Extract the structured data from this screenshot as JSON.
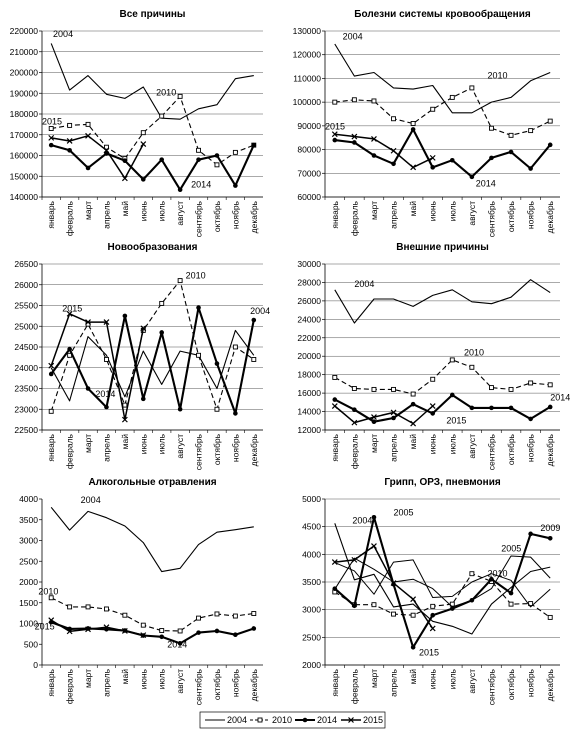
{
  "legend": {
    "items": [
      {
        "label": "2004",
        "style": "thin"
      },
      {
        "label": "2010",
        "style": "dash-square"
      },
      {
        "label": "2014",
        "style": "thick-dot"
      },
      {
        "label": "2015",
        "style": "cross"
      }
    ]
  },
  "months": [
    "январь",
    "февраль",
    "март",
    "апрель",
    "май",
    "июнь",
    "июль",
    "август",
    "сентябрь",
    "октябрь",
    "ноябрь",
    "декабрь"
  ],
  "chart_data": [
    {
      "type": "line",
      "title": "Все причины",
      "ylim": [
        140000,
        220000
      ],
      "yticks": [
        140000,
        150000,
        160000,
        170000,
        180000,
        190000,
        200000,
        210000,
        220000
      ],
      "grid": true,
      "series": [
        {
          "name": "2004",
          "values": [
            214000,
            191500,
            198500,
            189500,
            187500,
            193000,
            178000,
            177500,
            182500,
            184500,
            197000,
            198500
          ]
        },
        {
          "name": "2010",
          "values": [
            173000,
            174500,
            175000,
            164000,
            158500,
            171000,
            179000,
            188500,
            162500,
            155500,
            161500,
            165000
          ]
        },
        {
          "name": "2014",
          "values": [
            165000,
            162500,
            154000,
            161000,
            157500,
            148500,
            158000,
            143500,
            158000,
            160000,
            145500,
            165000
          ]
        },
        {
          "name": "2015",
          "values": [
            168500,
            167000,
            169500,
            162500,
            149000,
            165500,
            null,
            null,
            null,
            null,
            null,
            null
          ]
        }
      ],
      "annotations": [
        {
          "text": "2004"
        },
        {
          "text": "2010"
        },
        {
          "text": "2015"
        },
        {
          "text": "2014"
        }
      ]
    },
    {
      "type": "line",
      "title": "Болезни системы кровообращения",
      "ylim": [
        60000,
        130000
      ],
      "yticks": [
        60000,
        70000,
        80000,
        90000,
        100000,
        110000,
        120000,
        130000
      ],
      "grid": true,
      "series": [
        {
          "name": "2004",
          "values": [
            124500,
            111000,
            112500,
            106000,
            105500,
            107000,
            95500,
            95500,
            100000,
            102000,
            109000,
            112500
          ]
        },
        {
          "name": "2010",
          "values": [
            100000,
            101000,
            100500,
            93000,
            91000,
            97000,
            102000,
            106000,
            89000,
            86000,
            88000,
            92000
          ]
        },
        {
          "name": "2014",
          "values": [
            84000,
            83000,
            77500,
            74000,
            88500,
            72500,
            75500,
            68500,
            76500,
            79000,
            72000,
            82000
          ]
        },
        {
          "name": "2015",
          "values": [
            86500,
            85500,
            84500,
            79500,
            72500,
            76500,
            null,
            null,
            null,
            null,
            null,
            null
          ]
        }
      ],
      "annotations": [
        {
          "text": "2004"
        },
        {
          "text": "2010"
        },
        {
          "text": "2015"
        },
        {
          "text": "2014"
        }
      ]
    },
    {
      "type": "line",
      "title": "Новообразования",
      "ylim": [
        22500,
        26500
      ],
      "yticks": [
        22500,
        23000,
        23500,
        24000,
        24500,
        25000,
        25500,
        26000,
        26500
      ],
      "grid": true,
      "series": [
        {
          "name": "2004",
          "values": [
            24000,
            23200,
            24750,
            24300,
            23300,
            24400,
            23600,
            24400,
            24300,
            23500,
            24900,
            24300
          ]
        },
        {
          "name": "2010",
          "values": [
            22950,
            24300,
            25050,
            24200,
            23100,
            24900,
            25550,
            26100,
            24300,
            23000,
            24500,
            24200
          ]
        },
        {
          "name": "2014",
          "values": [
            23850,
            24450,
            23500,
            23050,
            25250,
            23250,
            24850,
            23000,
            25450,
            24100,
            22900,
            25150
          ]
        },
        {
          "name": "2015",
          "values": [
            24050,
            25300,
            25100,
            25100,
            22750,
            24950,
            null,
            null,
            null,
            null,
            null,
            null
          ]
        }
      ],
      "annotations": [
        {
          "text": "2010"
        },
        {
          "text": "2015"
        },
        {
          "text": "2014"
        },
        {
          "text": "2004"
        }
      ]
    },
    {
      "type": "line",
      "title": "Внешние причины",
      "ylim": [
        12000,
        30000
      ],
      "yticks": [
        12000,
        14000,
        16000,
        18000,
        20000,
        22000,
        24000,
        26000,
        28000,
        30000
      ],
      "grid": true,
      "series": [
        {
          "name": "2004",
          "values": [
            27200,
            23600,
            26200,
            26200,
            25400,
            26600,
            27200,
            25900,
            25700,
            26400,
            28300,
            26900
          ]
        },
        {
          "name": "2010",
          "values": [
            17700,
            16500,
            16400,
            16400,
            15900,
            17500,
            19600,
            18800,
            16600,
            16400,
            17100,
            16900
          ]
        },
        {
          "name": "2014",
          "values": [
            15300,
            14200,
            12900,
            13300,
            14800,
            13800,
            15800,
            14400,
            14400,
            14400,
            13200,
            14500
          ]
        },
        {
          "name": "2015",
          "values": [
            14600,
            12800,
            13400,
            13900,
            12700,
            14600,
            null,
            null,
            null,
            null,
            null,
            null
          ]
        }
      ],
      "annotations": [
        {
          "text": "2004"
        },
        {
          "text": "2010"
        },
        {
          "text": "2014"
        },
        {
          "text": "2015"
        }
      ]
    },
    {
      "type": "line",
      "title": "Алкогольные отравления",
      "ylim": [
        0,
        4000
      ],
      "yticks": [
        0,
        500,
        1000,
        1500,
        2000,
        2500,
        3000,
        3500,
        4000
      ],
      "grid": false,
      "series": [
        {
          "name": "2004",
          "values": [
            3800,
            3250,
            3700,
            3550,
            3350,
            2950,
            2250,
            2330,
            2900,
            3200,
            3260,
            3330
          ]
        },
        {
          "name": "2010",
          "values": [
            1620,
            1400,
            1400,
            1350,
            1200,
            960,
            830,
            820,
            1130,
            1230,
            1180,
            1240
          ]
        },
        {
          "name": "2014",
          "values": [
            1030,
            870,
            880,
            860,
            830,
            710,
            680,
            520,
            780,
            820,
            730,
            880
          ]
        },
        {
          "name": "2015",
          "values": [
            1080,
            810,
            860,
            910,
            820,
            720,
            null,
            null,
            null,
            null,
            null,
            null
          ]
        }
      ],
      "annotations": [
        {
          "text": "2004"
        },
        {
          "text": "2010"
        },
        {
          "text": "2015"
        },
        {
          "text": "2014"
        }
      ]
    },
    {
      "type": "line",
      "title": "Грипп, ОРЗ, пневмония",
      "ylim": [
        2000,
        5000
      ],
      "yticks": [
        2000,
        2500,
        3000,
        3500,
        4000,
        4500,
        5000
      ],
      "grid": true,
      "series": [
        {
          "name": "2004",
          "values": [
            4560,
            3540,
            3640,
            3050,
            3100,
            2790,
            2700,
            2560,
            3100,
            3400,
            3690,
            3770
          ]
        },
        {
          "name": "2010",
          "values": [
            3320,
            3090,
            3090,
            2920,
            2900,
            3060,
            3100,
            3650,
            3510,
            3100,
            3110,
            2860
          ]
        },
        {
          "name": "2014",
          "values": [
            3380,
            3070,
            4670,
            3460,
            2320,
            2900,
            3020,
            3170,
            3550,
            3300,
            4370,
            4290
          ]
        },
        {
          "name": "2015",
          "values": [
            3860,
            3900,
            4150,
            3480,
            3190,
            2660,
            null,
            null,
            null,
            null,
            null,
            null
          ]
        },
        {
          "name": "",
          "values": [
            3370,
            3930,
            3730,
            3500,
            3550,
            3380,
            3050,
            3170,
            3380,
            3970,
            3950,
            3570
          ]
        },
        {
          "name": "",
          "values": [
            3850,
            3700,
            3280,
            3860,
            3900,
            3220,
            3240,
            3500,
            3650,
            3530,
            3050,
            3370
          ]
        }
      ],
      "annotations": [
        {
          "text": "2004"
        },
        {
          "text": "2005"
        },
        {
          "text": "2009"
        },
        {
          "text": "2005"
        },
        {
          "text": "2010"
        },
        {
          "text": "2015"
        }
      ]
    }
  ]
}
